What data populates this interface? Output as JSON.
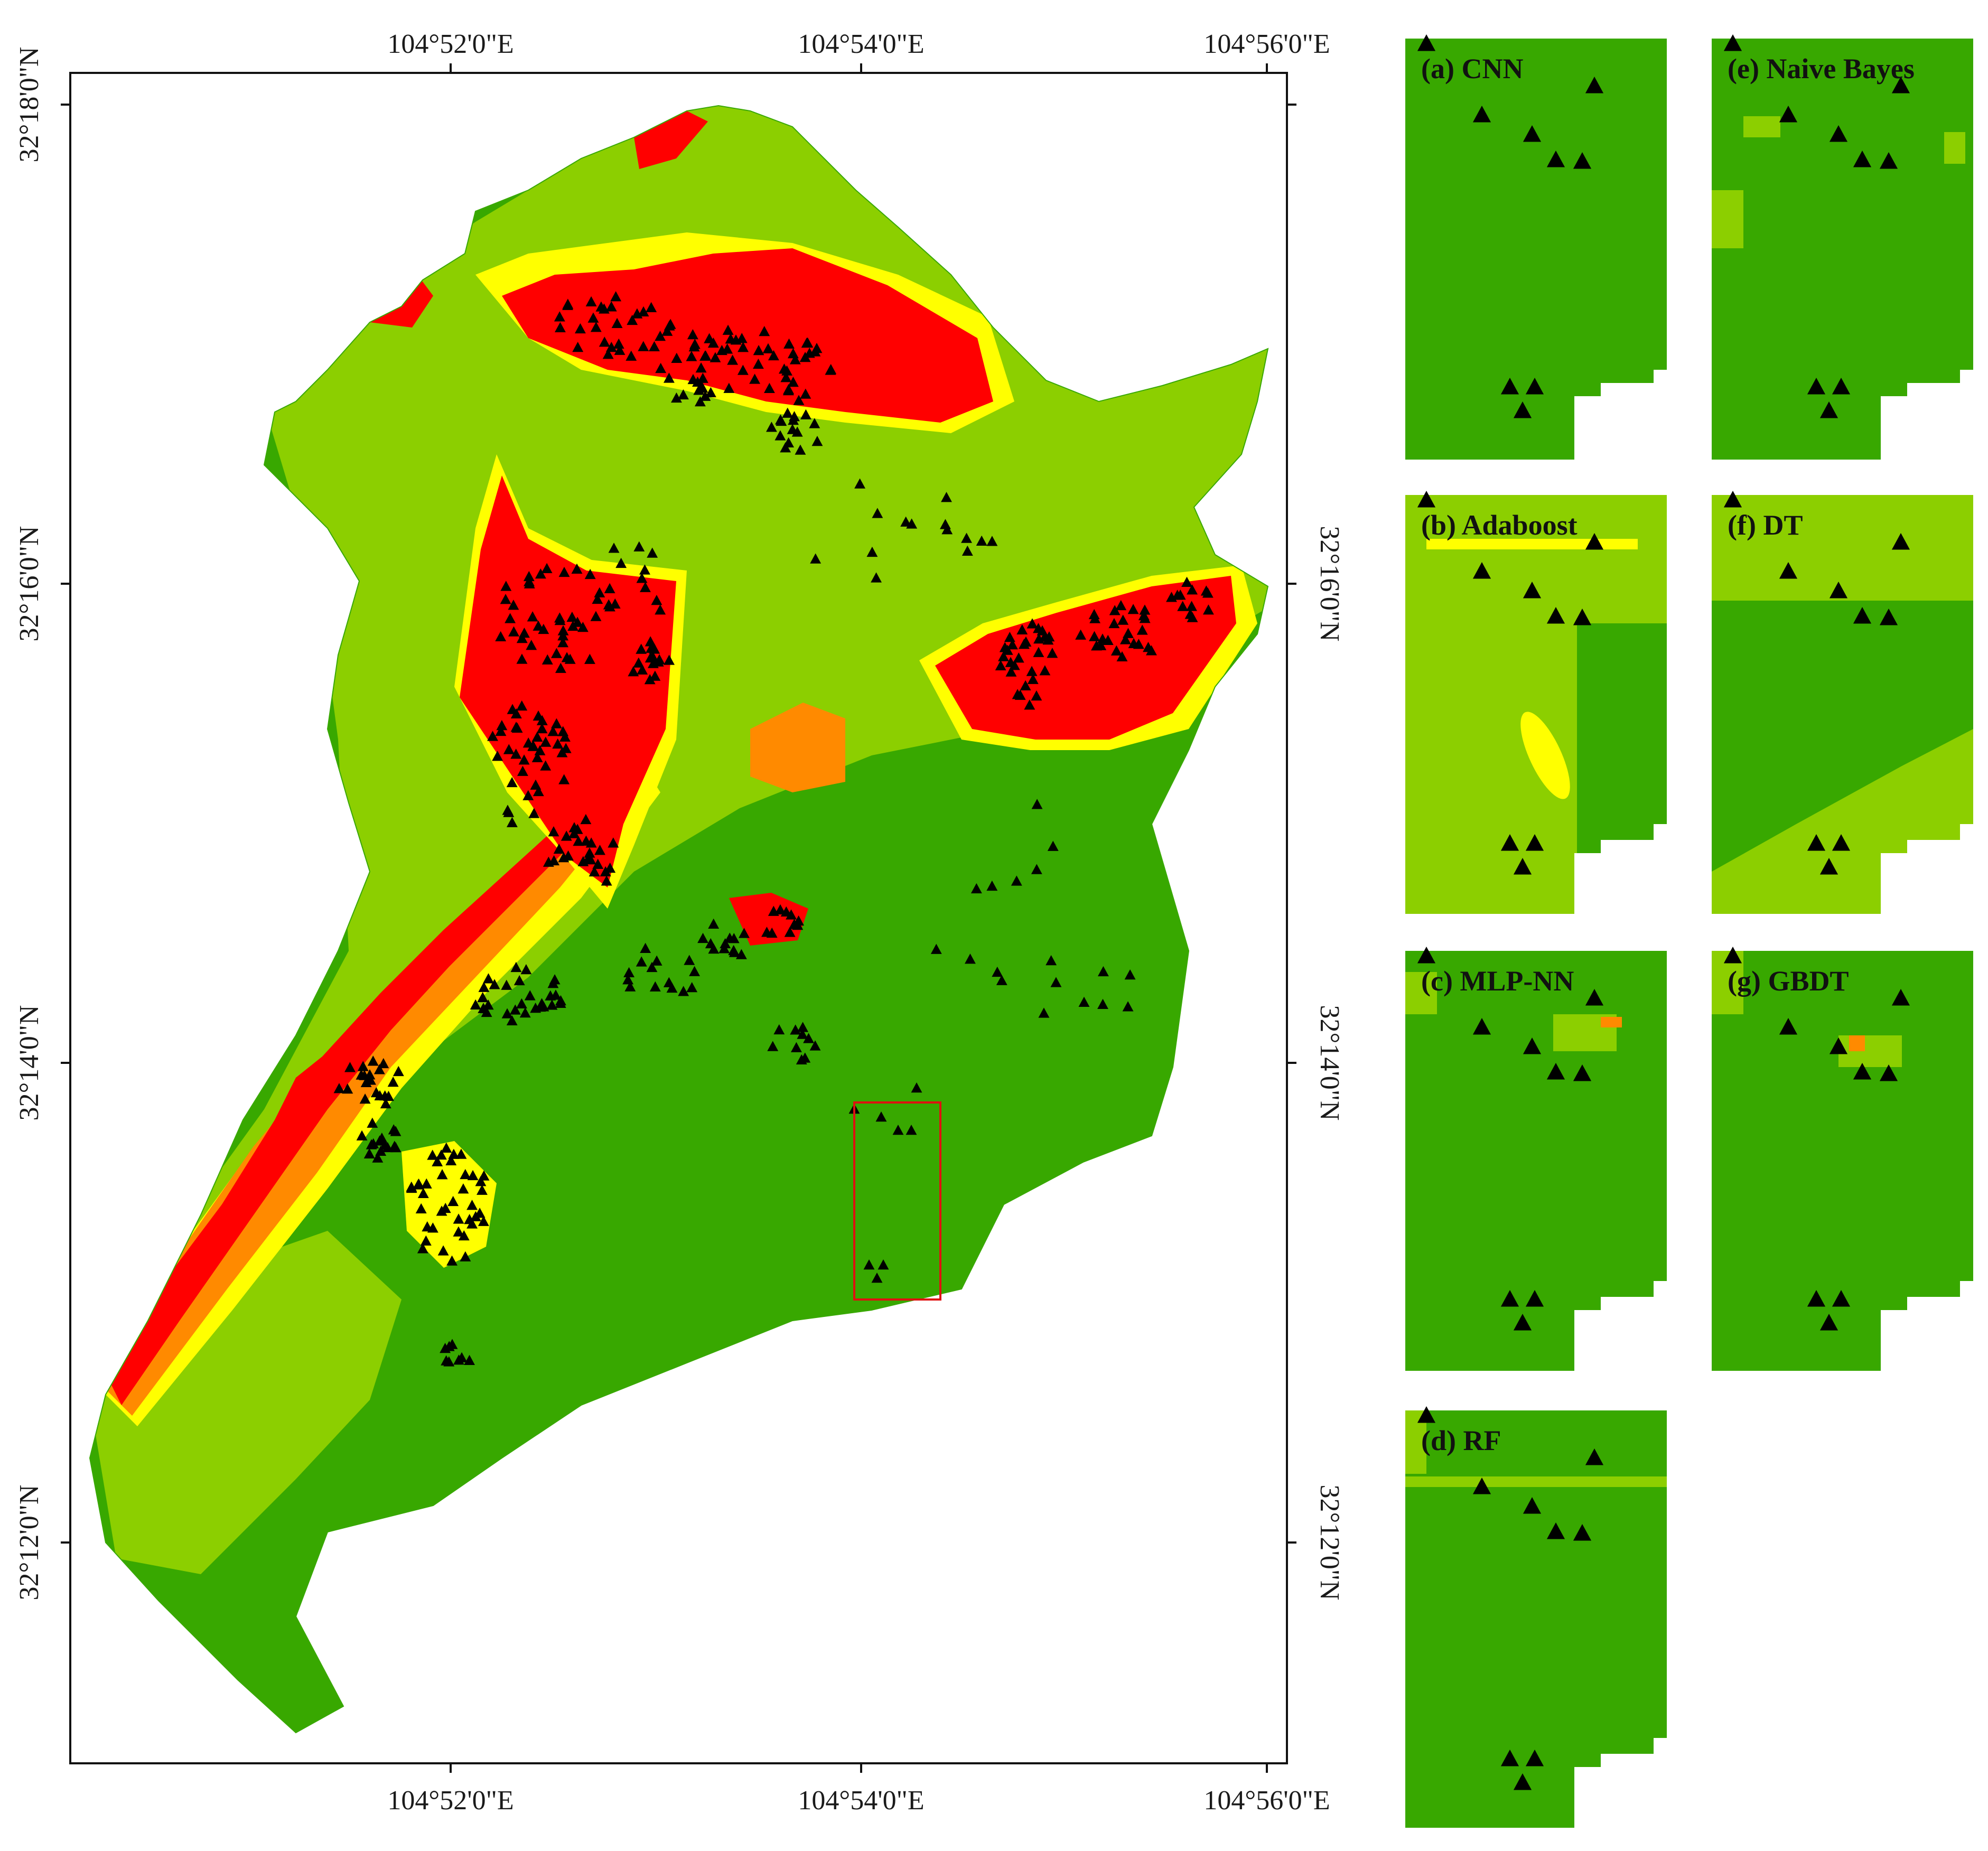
{
  "main_map": {
    "top_axis_labels": [
      "104°52'0\"E",
      "104°54'0\"E",
      "104°56'0\"E"
    ],
    "bottom_axis_labels": [
      "104°52'0\"E",
      "104°54'0\"E",
      "104°56'0\"E"
    ],
    "left_axis_labels": [
      "32°18'0\"N",
      "32°16'0\"N",
      "32°14'0\"N",
      "32°12'0\"N"
    ],
    "right_axis_labels": [
      "32°16'0\"N",
      "32°14'0\"N",
      "32°12'0\"N"
    ]
  },
  "colors": {
    "very_high": "#ff0000",
    "high": "#ff8a00",
    "moderate": "#ffff00",
    "low": "#8ccf00",
    "very_low": "#38a800",
    "points": "#000000",
    "highlight_box": "#e01010"
  },
  "panels": [
    {
      "id": "a",
      "label": "(a) CNN"
    },
    {
      "id": "b",
      "label": "(b) Adaboost"
    },
    {
      "id": "c",
      "label": "(c) MLP-NN"
    },
    {
      "id": "d",
      "label": "(d) RF"
    },
    {
      "id": "e",
      "label": "(e) Naive Bayes"
    },
    {
      "id": "f",
      "label": "(f) DT"
    },
    {
      "id": "g",
      "label": "(g) GBDT"
    }
  ]
}
